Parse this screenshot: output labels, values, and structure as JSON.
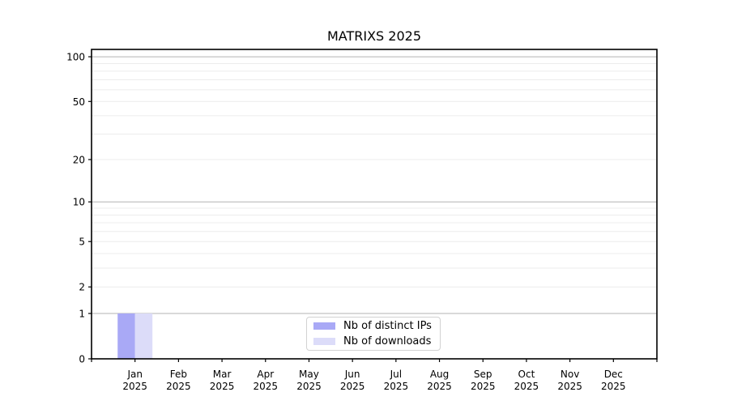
{
  "chart_data": {
    "type": "bar",
    "title": "MATRIXS 2025",
    "months": [
      "Jan",
      "Feb",
      "Mar",
      "Apr",
      "May",
      "Jun",
      "Jul",
      "Aug",
      "Sep",
      "Oct",
      "Nov",
      "Dec"
    ],
    "year": "2025",
    "series": [
      {
        "name": "Nb of distinct IPs",
        "color": "#a9a9f6",
        "values": [
          1,
          0,
          0,
          0,
          0,
          0,
          0,
          0,
          0,
          0,
          0,
          0
        ]
      },
      {
        "name": "Nb of downloads",
        "color": "#dcdcf9",
        "values": [
          1,
          0,
          0,
          0,
          0,
          0,
          0,
          0,
          0,
          0,
          0,
          0
        ]
      }
    ],
    "y_ticks": [
      0,
      1,
      2,
      5,
      10,
      20,
      50,
      100
    ],
    "y_scale": "log1p",
    "ylim": [
      0,
      112
    ],
    "xlabel": "",
    "ylabel": "",
    "grid": "horizontal",
    "grid_minor_values": [
      2,
      3,
      4,
      5,
      6,
      7,
      8,
      9,
      20,
      30,
      40,
      50,
      60,
      70,
      80,
      90
    ],
    "grid_major_values": [
      1,
      10,
      100
    ],
    "grid_minor_color": "#ececec",
    "grid_major_color": "#b3b3b3",
    "axis_color": "#000000",
    "legend_position": "lower center"
  }
}
